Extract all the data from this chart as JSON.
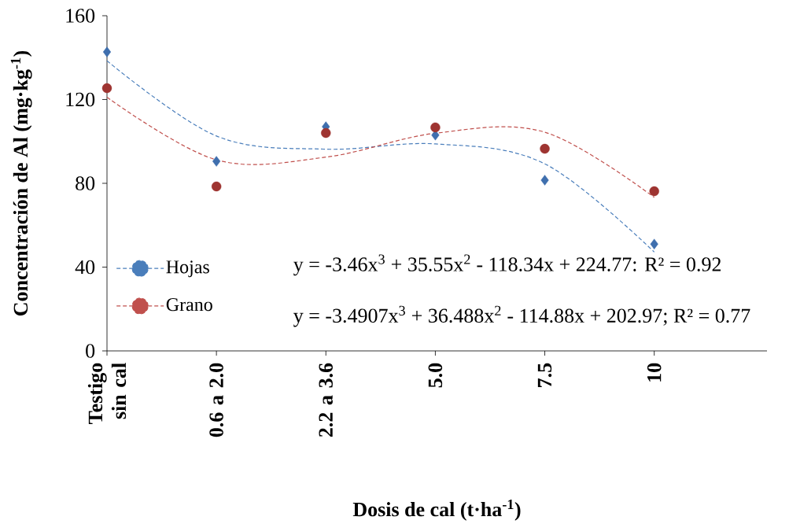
{
  "chart_data": {
    "type": "scatter",
    "xlabel": "Dosis de cal (t·ha$^{-1}$)",
    "ylabel": "Concentración de Al (mg·kg$^{-1}$)",
    "categories": [
      "Testigo sin cal",
      "0.6 a 2.0",
      "2.2 a 3.6",
      "5.0",
      "7.5",
      "10"
    ],
    "ylim": [
      0,
      160
    ],
    "yticks": [
      0,
      40,
      80,
      120,
      160
    ],
    "grid": false,
    "legend": "left",
    "series": [
      {
        "marker": "diamond",
        "color": "#3f6fae",
        "values": [
          142.7,
          90.5,
          107,
          103,
          81.5,
          51
        ]
      },
      {
        "marker": "circle",
        "color": "#9e3431",
        "values": [
          125.4,
          78.5,
          104,
          106.7,
          96.5,
          76.2
        ]
      },
      {
        "name": "Hojas",
        "type": "line",
        "line_style": "dashed",
        "color": "#4a7ebb",
        "values": [
          138.5,
          102.6,
          96.3,
          98.8,
          89.3,
          47.2
        ]
      },
      {
        "name": "Grano",
        "type": "line",
        "line_style": "dashed",
        "color": "#c0504d",
        "values": [
          121.1,
          91.2,
          92.5,
          103.9,
          104.4,
          73.3
        ]
      }
    ],
    "annotations": [
      "y = -3.46x$^{3}$ + 35.55x$^{2}$ - 118.34x + 224.77: R² = 0.92",
      "y = -3.4907x$^{3}$ + 36.488x$^{2}$ - 114.88x + 202.97; R² = 0.77"
    ]
  }
}
